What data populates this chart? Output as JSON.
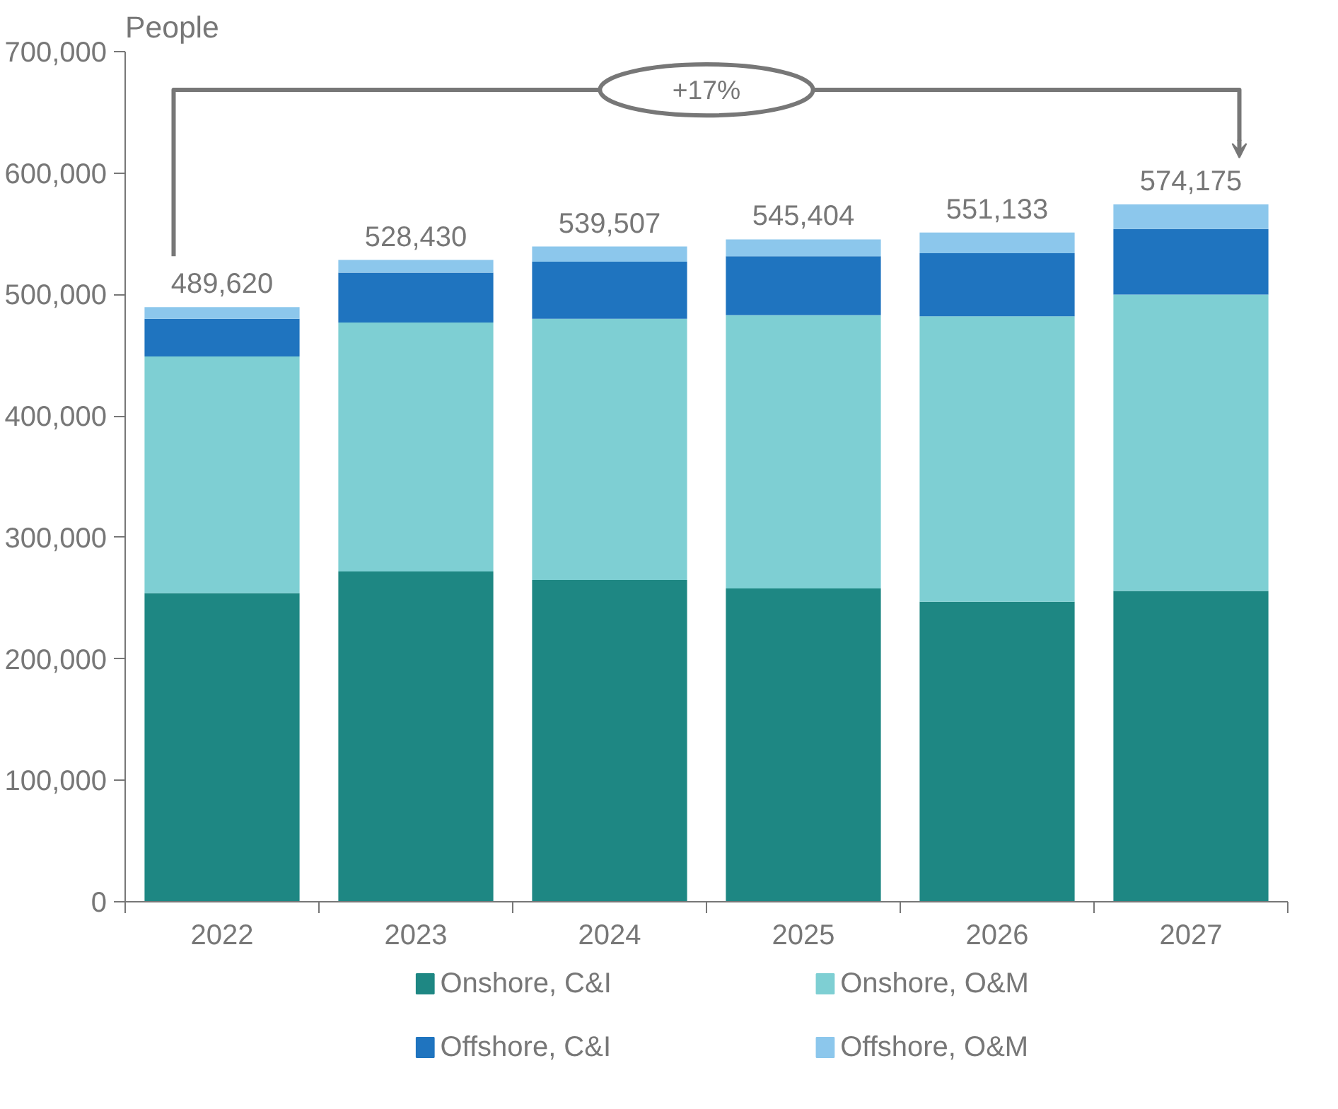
{
  "chart_data": {
    "type": "bar",
    "stacked": true,
    "ylabel": "People",
    "categories": [
      "2022",
      "2023",
      "2024",
      "2025",
      "2026",
      "2027"
    ],
    "series": [
      {
        "name": "Onshore, C&I",
        "color": "#1e8783",
        "values": [
          254000,
          272000,
          265000,
          258000,
          247000,
          256000
        ]
      },
      {
        "name": "Onshore, O&M",
        "color": "#7ecfd3",
        "values": [
          195000,
          205000,
          215000,
          225000,
          235000,
          244000
        ]
      },
      {
        "name": "Offshore, C&I",
        "color": "#1f74bf",
        "values": [
          31000,
          41000,
          47000,
          48500,
          52000,
          54000
        ]
      },
      {
        "name": "Offshore, O&M",
        "color": "#8cc7ec",
        "values": [
          9620,
          10430,
          12507,
          13904,
          17133,
          20175
        ]
      }
    ],
    "totals": [
      "489,620",
      "528,430",
      "539,507",
      "545,404",
      "551,133",
      "574,175"
    ],
    "annotations": [
      "+17%"
    ],
    "ylim": [
      0,
      700000
    ],
    "yticks": [
      {
        "value": 0,
        "label": "0"
      },
      {
        "value": 100000,
        "label": "100,000"
      },
      {
        "value": 200000,
        "label": "200,000"
      },
      {
        "value": 300000,
        "label": "300,000"
      },
      {
        "value": 400000,
        "label": "400,000"
      },
      {
        "value": 500000,
        "label": "500,000"
      },
      {
        "value": 600000,
        "label": "600,000"
      },
      {
        "value": 700000,
        "label": "700,000"
      }
    ],
    "grid": false,
    "legend": "bottom"
  }
}
